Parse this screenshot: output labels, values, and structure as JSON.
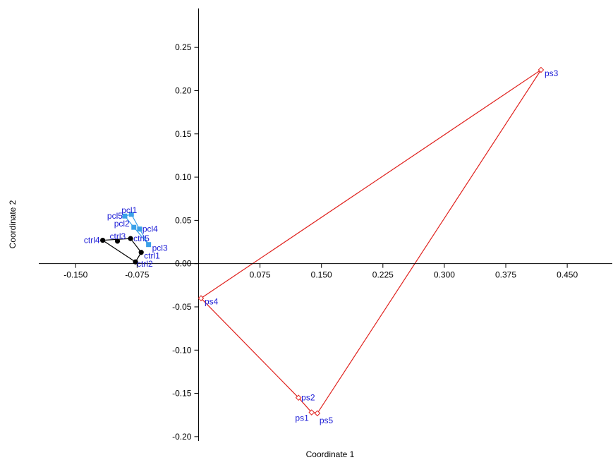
{
  "chart_data": {
    "type": "scatter",
    "xlabel": "Coordinate 1",
    "ylabel": "Coordinate 2",
    "xlim": [
      -0.195,
      0.505
    ],
    "ylim": [
      -0.205,
      0.295
    ],
    "x_ticks": [
      -0.15,
      -0.075,
      0.075,
      0.15,
      0.225,
      0.3,
      0.375,
      0.45
    ],
    "x_tick_labels": [
      "-0.150",
      "-0.075",
      "0.075",
      "0.150",
      "0.225",
      "0.300",
      "0.375",
      "0.450"
    ],
    "y_ticks": [
      -0.2,
      -0.15,
      -0.1,
      -0.05,
      0.0,
      0.05,
      0.1,
      0.15,
      0.2,
      0.25
    ],
    "y_tick_labels": [
      "-0.20",
      "-0.15",
      "-0.10",
      "-0.05",
      "0.00",
      "0.05",
      "0.10",
      "0.15",
      "0.20",
      "0.25"
    ],
    "grid": false,
    "label_color": "#1a1ad6",
    "series": [
      {
        "marker": "circle",
        "color": "#000000",
        "hull_color": "#000000",
        "points": [
          {
            "label": "ctrl1",
            "x": -0.07,
            "y": 0.013
          },
          {
            "label": "ctrl2",
            "x": -0.077,
            "y": 0.002
          },
          {
            "label": "ctrl3",
            "x": -0.099,
            "y": 0.026
          },
          {
            "label": "ctrl4",
            "x": -0.117,
            "y": 0.027
          },
          {
            "label": "ctrl5",
            "x": -0.083,
            "y": 0.029
          }
        ],
        "hull": [
          "ctrl4",
          "ctrl5",
          "ctrl1",
          "ctrl2",
          "ctrl4"
        ]
      },
      {
        "marker": "square",
        "color": "#3aa0e8",
        "hull_color": "#3aa0e8",
        "points": [
          {
            "label": "pcl1",
            "x": -0.082,
            "y": 0.057
          },
          {
            "label": "pcl2",
            "x": -0.079,
            "y": 0.042
          },
          {
            "label": "pcl3",
            "x": -0.061,
            "y": 0.022
          },
          {
            "label": "pcl4",
            "x": -0.072,
            "y": 0.04
          },
          {
            "label": "pcl5",
            "x": -0.09,
            "y": 0.055
          }
        ],
        "hull": [
          "pcl5",
          "pcl1",
          "pcl4",
          "pcl3",
          "pcl2",
          "pcl5"
        ]
      },
      {
        "marker": "diamond",
        "color": "#e0211d",
        "hull_color": "#e0211d",
        "points": [
          {
            "label": "ps1",
            "x": 0.138,
            "y": -0.172
          },
          {
            "label": "ps2",
            "x": 0.122,
            "y": -0.155
          },
          {
            "label": "ps3",
            "x": 0.418,
            "y": 0.224
          },
          {
            "label": "ps4",
            "x": 0.003,
            "y": -0.04
          },
          {
            "label": "ps5",
            "x": 0.145,
            "y": -0.173
          }
        ],
        "hull": [
          "ps4",
          "ps3",
          "ps5",
          "ps1",
          "ps2",
          "ps4"
        ]
      }
    ]
  }
}
